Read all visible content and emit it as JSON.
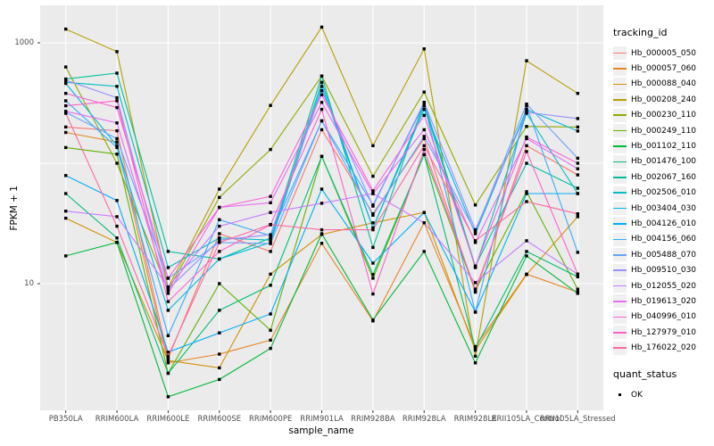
{
  "figure": {
    "y_axis": {
      "label": "FPKM + 1"
    },
    "x_axis": {
      "label": "sample_name"
    },
    "legend": {
      "tracking_title": "tracking_id",
      "quant_title": "quant_status",
      "quant_items": [
        {
          "label": "OK"
        }
      ]
    }
  },
  "chart_data": {
    "type": "line",
    "title": "",
    "xlabel": "sample_name",
    "ylabel": "FPKM + 1",
    "y_scale": "log10",
    "ylim": [
      1,
      2000
    ],
    "y_tick_values": [
      1000,
      10
    ],
    "y_gridline_values": [
      1000,
      100,
      10
    ],
    "grid": true,
    "legend_position": "right",
    "panel_bg": "#EBEBEB",
    "gridline_color": "#FFFFFF",
    "point_color": "#000000",
    "categories": [
      "PB350LA",
      "RRIM600LA",
      "RRIM600LE",
      "RRIM600SE",
      "RRIM600PE",
      "RRIM901LA",
      "RRIM928BA",
      "RRIM928LA",
      "RRIM928LE",
      "RRII105LA_Control",
      "RRII105LA_Stressed"
    ],
    "series": [
      {
        "name": "Hb_000005_050",
        "color": "#F8766D",
        "values": [
          200,
          186,
          2.4,
          26,
          18.5,
          190,
          38,
          160,
          8.5,
          140,
          80
        ]
      },
      {
        "name": "Hb_000057_060",
        "color": "#E88526",
        "values": [
          180,
          150,
          2.2,
          2.6,
          3.4,
          21.6,
          4.9,
          32,
          3,
          12,
          8.5
        ]
      },
      {
        "name": "Hb_000088_040",
        "color": "#D39200",
        "values": [
          35,
          22,
          2.3,
          2,
          12,
          25.6,
          32,
          39,
          2.8,
          11.9,
          36
        ]
      },
      {
        "name": "Hb_000208_240",
        "color": "#B79F00",
        "values": [
          1300,
          845,
          9.3,
          61,
          302,
          1350,
          140,
          890,
          2.5,
          710,
          380
        ]
      },
      {
        "name": "Hb_000230_110",
        "color": "#93AA00",
        "values": [
          630,
          100,
          8.8,
          52,
          130,
          530,
          78,
          390,
          45,
          202,
          200
        ]
      },
      {
        "name": "Hb_000249_110",
        "color": "#5EB300",
        "values": [
          135,
          119,
          1.8,
          10,
          4.1,
          114,
          11.1,
          118,
          8.8,
          58,
          9
        ]
      },
      {
        "name": "Hb_001102_110",
        "color": "#00BA38",
        "values": [
          17,
          22,
          1.15,
          1.6,
          2.9,
          26,
          5,
          18.5,
          2.2,
          17,
          8.3
        ]
      },
      {
        "name": "Hb_001476_100",
        "color": "#00BF74",
        "values": [
          56,
          24,
          1.8,
          6,
          9.7,
          114,
          11.9,
          118,
          2.9,
          18.5,
          11.4
        ]
      },
      {
        "name": "Hb_002067_160",
        "color": "#00C19F",
        "values": [
          500,
          560,
          18.5,
          16,
          24,
          530,
          20,
          320,
          14,
          100,
          62
        ]
      },
      {
        "name": "Hb_002506_010",
        "color": "#00BFC4",
        "values": [
          470,
          435,
          13.6,
          24,
          23,
          470,
          29,
          300,
          13.6,
          260,
          56
        ]
      },
      {
        "name": "Hb_003404_030",
        "color": "#00B9E3",
        "values": [
          460,
          140,
          6,
          16,
          22,
          435,
          29,
          280,
          26,
          280,
          185
        ]
      },
      {
        "name": "Hb_004126_010",
        "color": "#00ADFA",
        "values": [
          79,
          49,
          2.7,
          3.9,
          5.6,
          61,
          14.8,
          39,
          5.8,
          56,
          56
        ]
      },
      {
        "name": "Hb_004156_060",
        "color": "#35ABFF",
        "values": [
          330,
          135,
          3.7,
          34,
          25,
          225,
          45,
          310,
          5.8,
          300,
          18.2
        ]
      },
      {
        "name": "Hb_005488_070",
        "color": "#67A3FF",
        "values": [
          265,
          160,
          11.1,
          22,
          21.5,
          225,
          37,
          167,
          27,
          310,
          110
        ]
      },
      {
        "name": "Hb_009510_030",
        "color": "#9590FF",
        "values": [
          490,
          350,
          9,
          23,
          25.5,
          400,
          44,
          320,
          28,
          265,
          235
        ]
      },
      {
        "name": "Hb_012055_020",
        "color": "#C77CFF",
        "values": [
          40,
          36,
          9.4,
          30,
          39,
          46.5,
          56,
          32,
          10.2,
          22.7,
          12
        ]
      },
      {
        "name": "Hb_019613_020",
        "color": "#E76BF3",
        "values": [
          270,
          216,
          8.3,
          43,
          47,
          320,
          56,
          190,
          22,
          160,
          90
        ]
      },
      {
        "name": "Hb_040996_010",
        "color": "#FA62DB",
        "values": [
          380,
          290,
          11.1,
          43,
          53,
          370,
          59,
          250,
          14,
          165,
          100
        ]
      },
      {
        "name": "Hb_127979_010",
        "color": "#FF61C7",
        "values": [
          300,
          330,
          7.1,
          18.5,
          30.8,
          280,
          8.2,
          130,
          9,
          125,
          12
        ]
      },
      {
        "name": "Hb_176022_020",
        "color": "#FF68A1",
        "values": [
          260,
          30,
          2.5,
          22,
          31,
          28,
          28,
          140,
          22.7,
          48,
          38
        ]
      }
    ]
  }
}
